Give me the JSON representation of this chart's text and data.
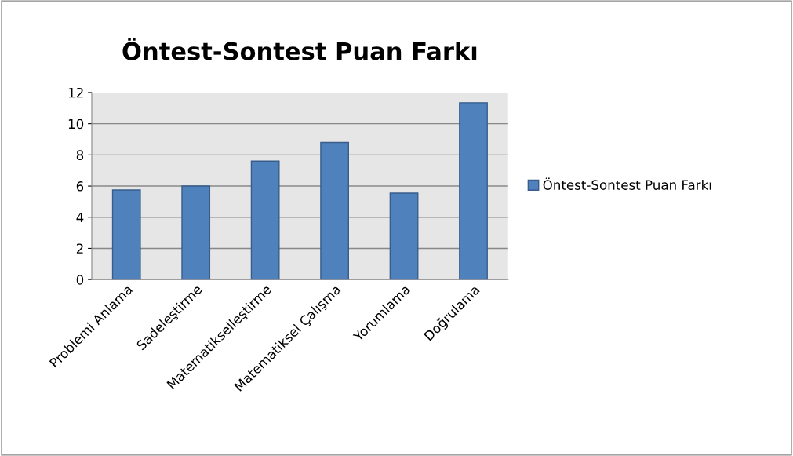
{
  "chart_data": {
    "type": "bar",
    "title": "Öntest-Sontest Puan Farkı",
    "categories": [
      "Problemi Anlama",
      "Sadeleştirme",
      "Matematikselleştirme",
      "Matematiksel Çalışma",
      "Yorumlama",
      "Doğrulama"
    ],
    "series": [
      {
        "name": "Öntest-Sontest Puan Farkı",
        "color": "#4f81bd",
        "values": [
          5.75,
          6.0,
          7.6,
          8.8,
          5.55,
          11.35
        ]
      }
    ],
    "ylim": [
      0,
      12
    ],
    "yticks": [
      0,
      2,
      4,
      6,
      8,
      10,
      12
    ],
    "grid": "y",
    "legend": "right"
  }
}
